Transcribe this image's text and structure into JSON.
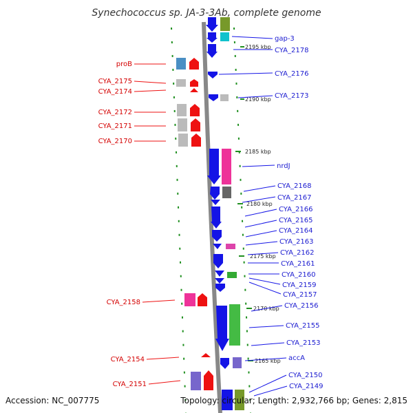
{
  "title": "Synechococcus sp. JA-3-3Ab, complete genome",
  "footer": {
    "accession": "Accession: NC_007775",
    "summary": "Topology: circular; Length: 2,932,766 bp; Genes: 2,815"
  },
  "colors": {
    "backbone": "#888888",
    "forward_strand": "#1414e6",
    "reverse_strand": "#ee1111",
    "tick": "#1f8f1f",
    "label_left": "#d40000",
    "label_right": "#1a1ad0"
  },
  "scale_labels": [
    "2195 kbp",
    "2190 kbp",
    "2185 kbp",
    "2180 kbp",
    "2175 kbp",
    "2170 kbp",
    "2165 kbp"
  ],
  "left_labels": [
    "proB",
    "CYA_2175",
    "CYA_2174",
    "CYA_2172",
    "CYA_2171",
    "CYA_2170",
    "CYA_2158",
    "CYA_2154",
    "CYA_2151"
  ],
  "right_labels": [
    "gap-3",
    "CYA_2178",
    "CYA_2176",
    "CYA_2173",
    "nrdJ",
    "CYA_2168",
    "CYA_2167",
    "CYA_2166",
    "CYA_2165",
    "CYA_2164",
    "CYA_2163",
    "CYA_2162",
    "CYA_2161",
    "CYA_2160",
    "CYA_2159",
    "CYA_2157",
    "CYA_2156",
    "CYA_2155",
    "CYA_2153",
    "accA",
    "CYA_2150",
    "CYA_2149"
  ]
}
